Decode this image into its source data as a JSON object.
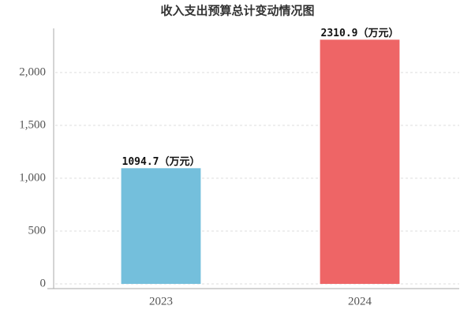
{
  "chart_data": {
    "type": "bar",
    "title": "收入支出预算总计变动情况图",
    "categories": [
      "2023",
      "2024"
    ],
    "values": [
      1094.7,
      2310.9
    ],
    "value_labels": [
      "1094.7（万元）",
      "2310.9（万元）"
    ],
    "colors": [
      "#74bfdc",
      "#ee6566"
    ],
    "ylim": [
      0,
      2400
    ],
    "yticks": [
      0,
      500,
      {
        "value": 1000,
        "label": "1,000"
      },
      {
        "value": 1500,
        "label": "1,500"
      },
      {
        "value": 2000,
        "label": "2,000"
      }
    ],
    "grid": true
  }
}
